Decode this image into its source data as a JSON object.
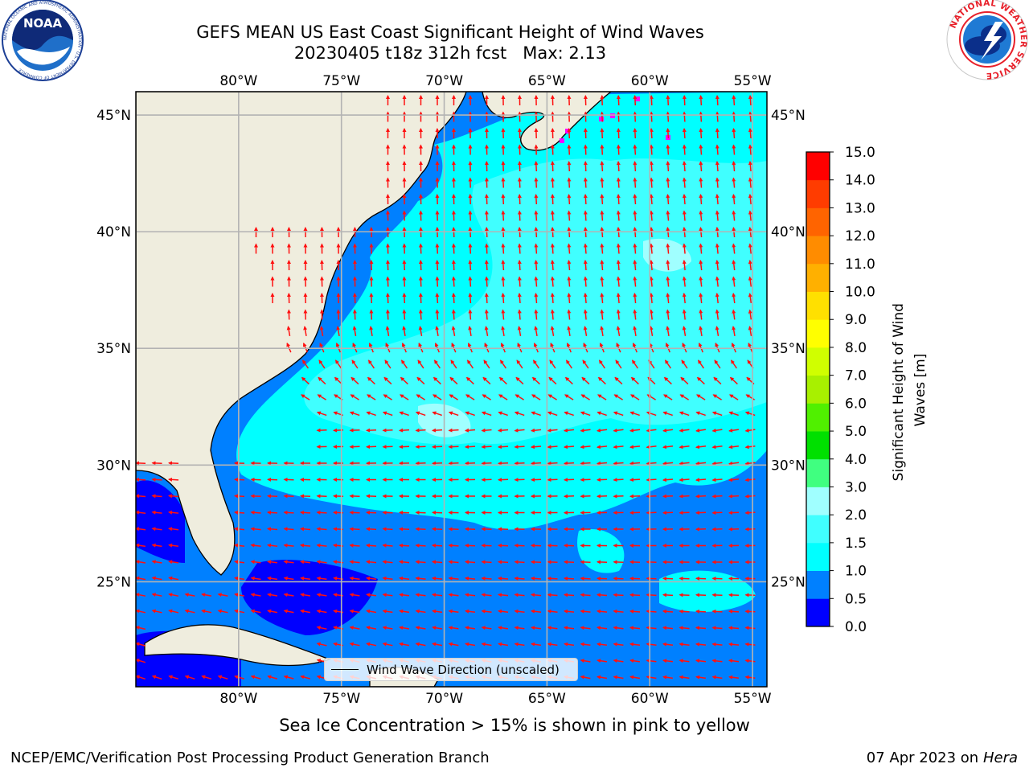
{
  "header": {
    "title_line1": "GEFS MEAN US East Coast Significant Height of Wind Waves",
    "title_line2": "20230405 t18z 312h fcst   Max: 2.13"
  },
  "logos": {
    "noaa_text": "NOAA",
    "noaa_ring_text": "NATIONAL OCEANIC AND ATMOSPHERIC ADMINISTRATION · U.S. DEPARTMENT OF COMMERCE",
    "nws_ring_text": "NATIONAL WEATHER SERVICE"
  },
  "map": {
    "lon_labels": [
      "80°W",
      "75°W",
      "70°W",
      "65°W",
      "60°W",
      "55°W"
    ],
    "lat_labels": [
      "45°N",
      "40°N",
      "35°N",
      "30°N",
      "25°N"
    ],
    "lon_range": [
      -85,
      -54.3
    ],
    "lat_range": [
      20.5,
      46
    ],
    "legend_label": "Wind Wave Direction (unscaled)",
    "colors": {
      "land": "#efedde",
      "arrow": "#ff1010",
      "ice": "#ff00ff",
      "coast": "#000000",
      "grid": "#b3b3b3"
    }
  },
  "colorbar": {
    "label_line1": "Significant Height of Wind",
    "label_line2": "Waves [m]",
    "ticks": [
      "0.0",
      "0.5",
      "1.0",
      "1.5",
      "2.0",
      "3.0",
      "4.0",
      "5.0",
      "6.0",
      "7.0",
      "8.0",
      "9.0",
      "10.0",
      "11.0",
      "12.0",
      "13.0",
      "14.0",
      "15.0"
    ],
    "colors": [
      "#0000ff",
      "#0080ff",
      "#00ffff",
      "#40ffff",
      "#a0ffff",
      "#40ff80",
      "#00e000",
      "#50f000",
      "#a8f000",
      "#d0ff00",
      "#ffff00",
      "#ffe000",
      "#ffb000",
      "#ff8c00",
      "#ff6400",
      "#ff3c00",
      "#ff0000"
    ]
  },
  "caption": "Sea Ice Concentration > 15% is shown in pink to yellow",
  "footer": {
    "left": "NCEP/EMC/Verification Post Processing Product Generation Branch",
    "right_date": "07 Apr 2023 on ",
    "right_host": "Hera"
  }
}
